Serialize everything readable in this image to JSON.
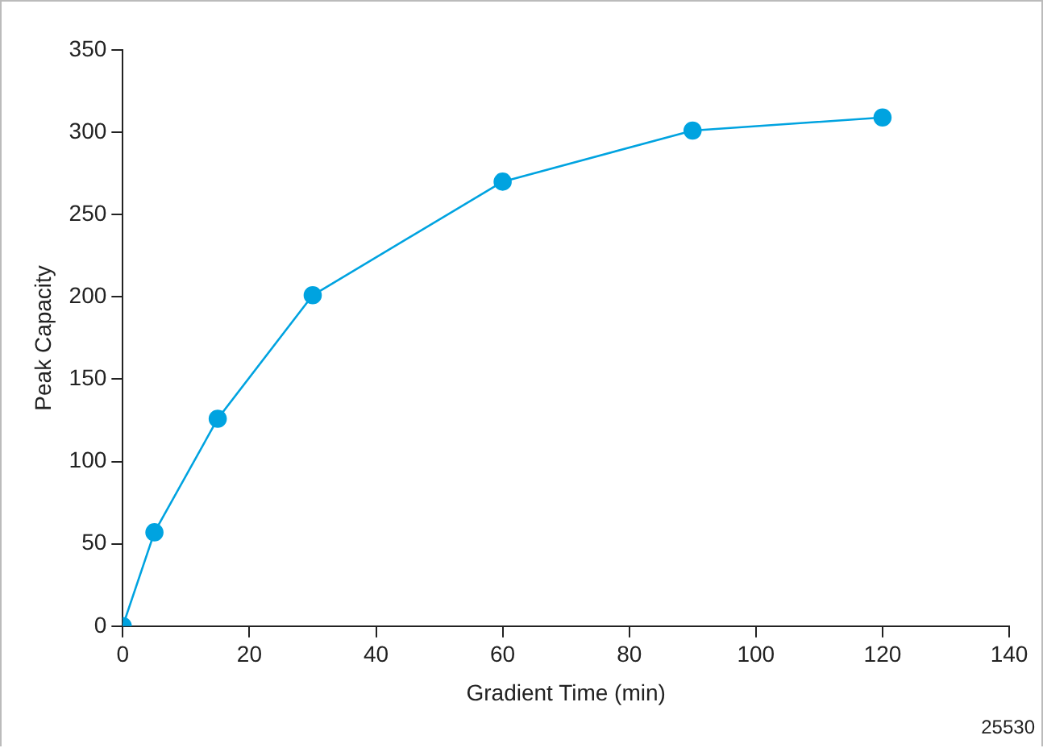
{
  "chart_data": {
    "type": "line",
    "xlabel": "Gradient Time (min)",
    "ylabel": "Peak Capacity",
    "x": [
      0,
      5,
      15,
      30,
      60,
      90,
      120
    ],
    "series": [
      {
        "color": "#00a3e0",
        "values": [
          0,
          57,
          126,
          201,
          270,
          301,
          309
        ]
      }
    ],
    "xlim": [
      0,
      140
    ],
    "xticks": [
      0,
      20,
      40,
      60,
      80,
      100,
      120,
      140
    ],
    "ylim": [
      0,
      350
    ],
    "yticks": [
      0,
      50,
      100,
      150,
      200,
      250,
      300,
      350
    ],
    "grid": false,
    "legend": false,
    "marker": "circle",
    "line_style": "solid",
    "annotations": [
      "25530"
    ]
  }
}
